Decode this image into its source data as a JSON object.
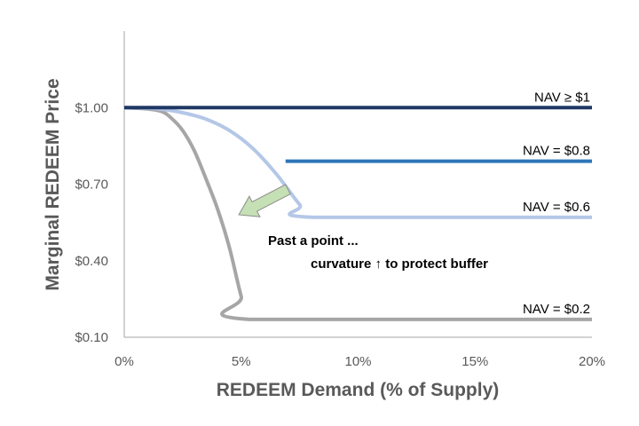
{
  "chart_data": {
    "type": "line",
    "title": "",
    "xlabel": "REDEEM Demand (% of Supply)",
    "ylabel": "Marginal REDEEM Price",
    "xlim": [
      0,
      20
    ],
    "ylim": [
      0.1,
      1.3
    ],
    "x_ticks": [
      0,
      5,
      10,
      15,
      20
    ],
    "x_tick_labels": [
      "0%",
      "5%",
      "10%",
      "15%",
      "20%"
    ],
    "y_ticks": [
      0.1,
      0.4,
      0.7,
      1.0
    ],
    "y_tick_labels": [
      "$0.10",
      "$0.40",
      "$0.70",
      "$1.00"
    ],
    "grid": false,
    "legend": "none",
    "series": [
      {
        "name": "NAV ≥ $1",
        "color": "#1f3864",
        "x": [
          0,
          20
        ],
        "y": [
          1.0,
          1.0
        ]
      },
      {
        "name": "NAV = $0.8",
        "color": "#2e75b6",
        "x": [
          6.9,
          20
        ],
        "y": [
          0.79,
          0.79
        ]
      },
      {
        "name": "NAV = $0.6",
        "color": "#b4c7e7",
        "x": [
          0,
          1.5,
          2.5,
          3.5,
          4.5,
          5.5,
          6.5,
          7.5,
          8.1,
          20
        ],
        "y": [
          1.0,
          0.995,
          0.98,
          0.955,
          0.91,
          0.84,
          0.74,
          0.62,
          0.57,
          0.57
        ]
      },
      {
        "name": "NAV = $0.2",
        "color": "#a6a6a6",
        "x": [
          0,
          1.0,
          1.6,
          2.0,
          2.5,
          3.0,
          3.5,
          4.0,
          4.5,
          5.0,
          5.35,
          20
        ],
        "y": [
          1.0,
          0.995,
          0.985,
          0.96,
          0.91,
          0.83,
          0.72,
          0.6,
          0.45,
          0.26,
          0.17,
          0.17
        ]
      }
    ],
    "annotations": {
      "line1": "Past a point ...",
      "line2": "curvature ↑ to protect buffer",
      "arrow_from": [
        7.0,
        0.68
      ],
      "arrow_to": [
        4.9,
        0.58
      ]
    }
  }
}
